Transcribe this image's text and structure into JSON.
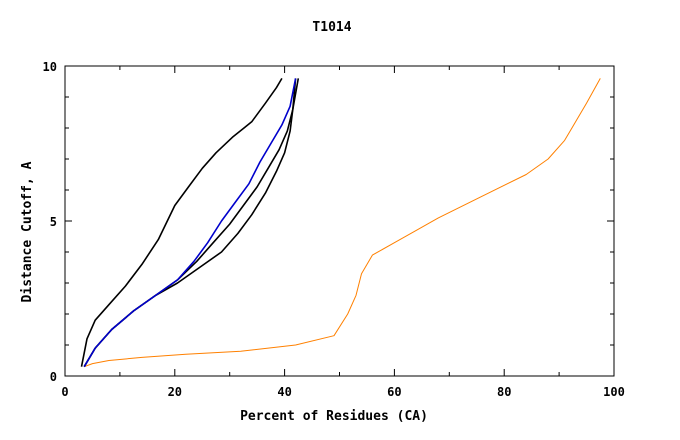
{
  "chart_data": {
    "type": "line",
    "title": "T1014",
    "xlabel": "Percent of Residues (CA)",
    "ylabel": "Distance Cutoff, A",
    "xlim": [
      0,
      100
    ],
    "ylim": [
      0,
      10
    ],
    "x_ticks": [
      0,
      20,
      40,
      60,
      80,
      100
    ],
    "y_ticks": [
      0,
      5,
      10
    ],
    "x_tick_labels": [
      "0",
      "20",
      "40",
      "60",
      "80",
      "100"
    ],
    "y_tick_labels": [
      "0",
      "5",
      "10"
    ],
    "grid": false,
    "legend": "none",
    "colors": {
      "model": "#ff8000",
      "highlight_black": "#000000",
      "highlight_blue": "#0000cc"
    },
    "highlighted_series": [
      {
        "color": "#000000",
        "x": [
          3.0,
          4.0,
          5.5,
          8.0,
          11.0,
          14.0,
          17.0,
          20.0,
          22.5,
          25.0,
          27.5,
          30.5,
          34.0,
          36.5,
          38.5,
          39.5
        ],
        "y": [
          0.3,
          1.2,
          1.8,
          2.3,
          2.9,
          3.6,
          4.4,
          5.5,
          6.1,
          6.7,
          7.2,
          7.7,
          8.2,
          8.8,
          9.3,
          9.6
        ]
      },
      {
        "color": "#000000",
        "x": [
          3.5,
          5.5,
          8.5,
          12.5,
          16.5,
          20.5,
          24.5,
          28.5,
          31.5,
          34.0,
          36.5,
          38.5,
          40.0,
          41.0,
          41.5,
          42.0
        ],
        "y": [
          0.3,
          0.9,
          1.5,
          2.1,
          2.6,
          3.0,
          3.5,
          4.0,
          4.6,
          5.2,
          5.9,
          6.6,
          7.2,
          7.9,
          8.6,
          9.6
        ]
      },
      {
        "color": "#000000",
        "x": [
          3.5,
          5.5,
          8.5,
          12.5,
          16.5,
          20.5,
          24.0,
          27.0,
          30.0,
          32.5,
          35.0,
          37.0,
          39.0,
          40.5,
          41.5,
          42.5
        ],
        "y": [
          0.3,
          0.9,
          1.5,
          2.1,
          2.6,
          3.1,
          3.7,
          4.3,
          4.9,
          5.5,
          6.1,
          6.7,
          7.3,
          7.9,
          8.6,
          9.6
        ]
      },
      {
        "color": "#0000cc",
        "x": [
          3.5,
          5.5,
          8.5,
          12.5,
          16.5,
          20.5,
          23.5,
          26.0,
          28.5,
          31.0,
          33.5,
          35.5,
          37.5,
          39.5,
          41.0,
          42.0
        ],
        "y": [
          0.3,
          0.9,
          1.5,
          2.1,
          2.6,
          3.1,
          3.7,
          4.3,
          5.0,
          5.6,
          6.2,
          6.9,
          7.5,
          8.1,
          8.7,
          9.6
        ]
      }
    ],
    "model_series": [
      {
        "x": [
          3.5,
          5.0,
          8.0,
          14.0,
          22.0,
          32.0,
          42.0,
          49.0,
          51.5,
          53.0,
          54.0,
          56.0,
          60.0,
          64.0,
          68.0,
          76.0,
          84.0,
          88.0,
          91.0,
          93.0,
          95.0,
          97.5
        ],
        "y": [
          0.3,
          0.4,
          0.5,
          0.6,
          0.7,
          0.8,
          1.0,
          1.3,
          2.0,
          2.6,
          3.3,
          3.9,
          4.3,
          4.7,
          5.1,
          5.8,
          6.5,
          7.0,
          7.6,
          8.2,
          8.8,
          9.6
        ]
      }
    ]
  }
}
